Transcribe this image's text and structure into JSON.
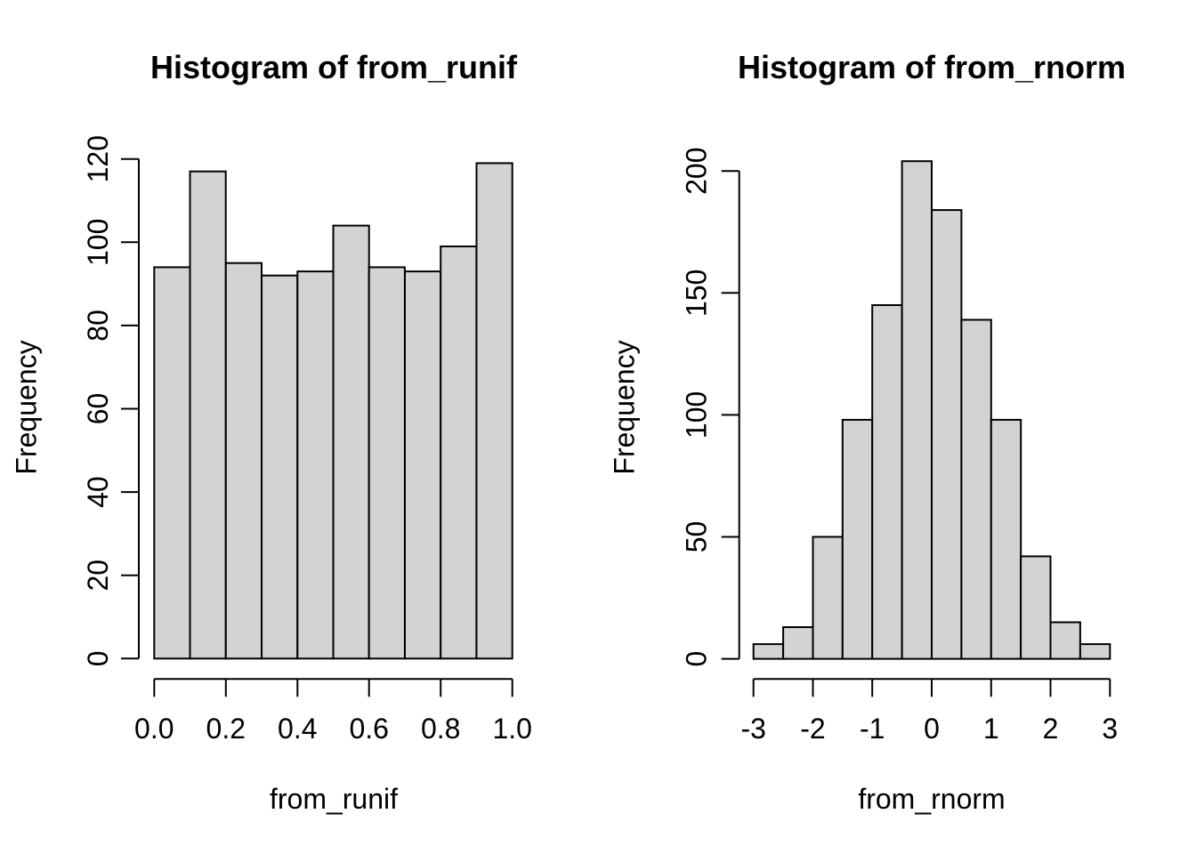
{
  "page": {
    "background": "#ffffff"
  },
  "chart_data": [
    {
      "id": "runif",
      "type": "bar",
      "subtype": "histogram",
      "title": "Histogram of from_runif",
      "xlabel": "from_runif",
      "ylabel": "Frequency",
      "bin_start": 0.0,
      "bin_width": 0.1,
      "counts": [
        94,
        117,
        95,
        92,
        93,
        104,
        94,
        93,
        99,
        119
      ],
      "xlim": [
        0.0,
        1.0
      ],
      "ylim": [
        0,
        120
      ],
      "x_ticks": [
        0.0,
        0.2,
        0.4,
        0.6,
        0.8,
        1.0
      ],
      "x_tick_labels": [
        "0.0",
        "0.2",
        "0.4",
        "0.6",
        "0.8",
        "1.0"
      ],
      "y_ticks": [
        0,
        20,
        40,
        60,
        80,
        100,
        120
      ],
      "y_tick_labels": [
        "0",
        "20",
        "40",
        "60",
        "80",
        "100",
        "120"
      ],
      "grid": "off",
      "legend": "none",
      "bar_fill": "#d3d3d3",
      "bar_stroke": "#000000",
      "axis_color": "#000000"
    },
    {
      "id": "rnorm",
      "type": "bar",
      "subtype": "histogram",
      "title": "Histogram of from_rnorm",
      "xlabel": "from_rnorm",
      "ylabel": "Frequency",
      "bin_start": -3.0,
      "bin_width": 0.5,
      "counts": [
        6,
        13,
        50,
        98,
        145,
        204,
        184,
        139,
        98,
        42,
        15,
        6
      ],
      "xlim": [
        -3.0,
        3.0
      ],
      "ylim": [
        0,
        200
      ],
      "x_ticks": [
        -3,
        -2,
        -1,
        0,
        1,
        2,
        3
      ],
      "x_tick_labels": [
        "-3",
        "-2",
        "-1",
        "0",
        "1",
        "2",
        "3"
      ],
      "y_ticks": [
        0,
        50,
        100,
        150,
        200
      ],
      "y_tick_labels": [
        "0",
        "50",
        "100",
        "150",
        "200"
      ],
      "grid": "off",
      "legend": "none",
      "bar_fill": "#d3d3d3",
      "bar_stroke": "#000000",
      "axis_color": "#000000"
    }
  ]
}
